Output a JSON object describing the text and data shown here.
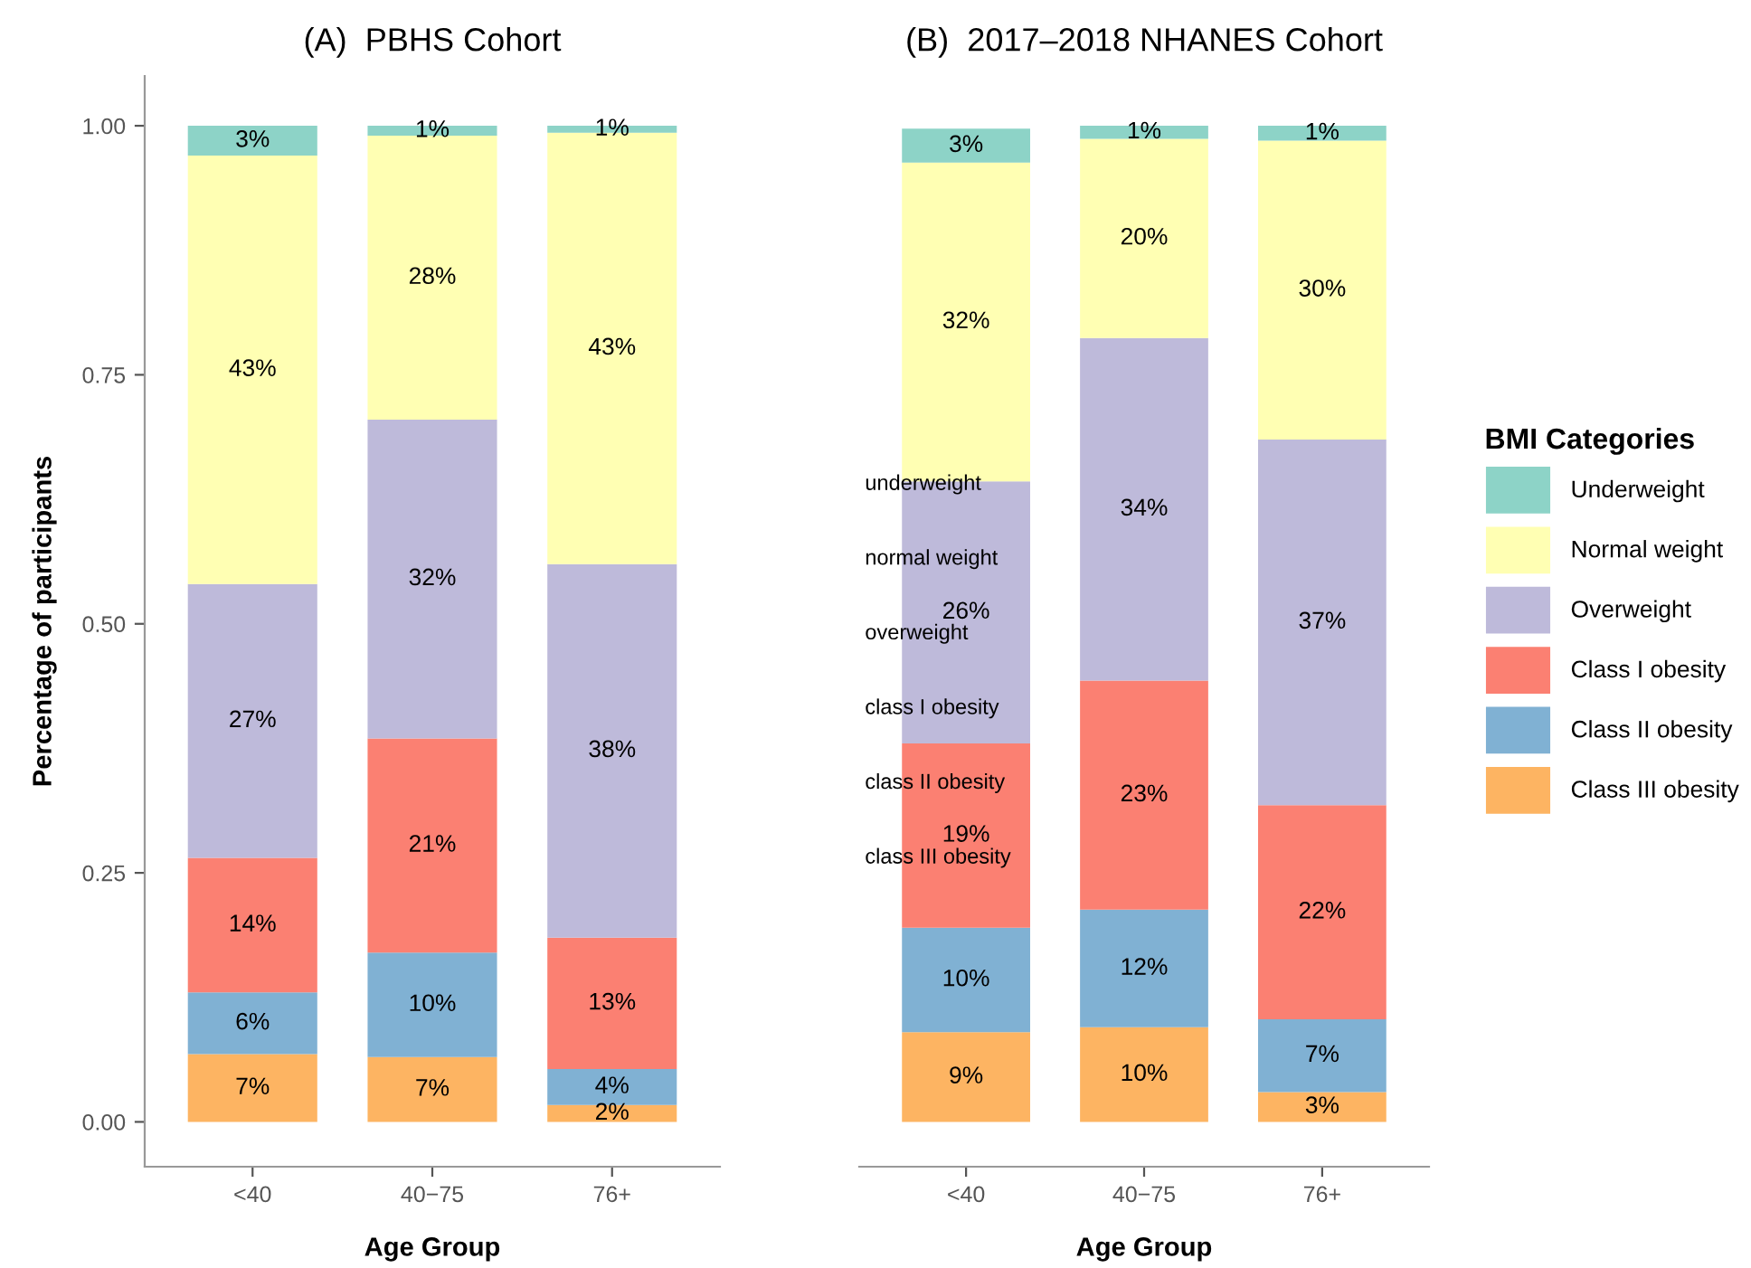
{
  "chart_data": [
    {
      "type": "bar",
      "stacked": true,
      "title": "(A)  PBHS Cohort",
      "xlabel": "Age Group",
      "ylabel": "Percentage of participants",
      "categories": [
        "<40",
        "40−75",
        "76+"
      ],
      "ylim": [
        -0.045,
        1.05
      ],
      "yticks": [
        {
          "value": 0,
          "label": "0.00"
        },
        {
          "value": 0.25,
          "label": "0.25"
        },
        {
          "value": 0.5,
          "label": "0.50"
        },
        {
          "value": 0.75,
          "label": "0.75"
        },
        {
          "value": 1,
          "label": "1.00"
        }
      ],
      "grid": false,
      "series": [
        {
          "color": "#fdb462",
          "values": [
            0.068,
            0.065,
            0.017
          ],
          "value_labels": [
            "7%",
            "7%",
            "2%"
          ]
        },
        {
          "color": "#80b1d3",
          "values": [
            0.062,
            0.105,
            0.036
          ],
          "value_labels": [
            "6%",
            "10%",
            "4%"
          ]
        },
        {
          "color": "#fb8072",
          "values": [
            0.135,
            0.215,
            0.132
          ],
          "value_labels": [
            "14%",
            "21%",
            "13%"
          ]
        },
        {
          "color": "#bebada",
          "values": [
            0.275,
            0.32,
            0.375
          ],
          "value_labels": [
            "27%",
            "32%",
            "38%"
          ]
        },
        {
          "color": "#ffffb3",
          "values": [
            0.43,
            0.285,
            0.433
          ],
          "value_labels": [
            "43%",
            "28%",
            "43%"
          ]
        },
        {
          "color": "#8dd3c7",
          "values": [
            0.03,
            0.01,
            0.007
          ],
          "value_labels": [
            "3%",
            "1%",
            "1%"
          ]
        }
      ]
    },
    {
      "type": "bar",
      "stacked": true,
      "title": "(B)  2017–2018 NHANES Cohort",
      "xlabel": "Age Group",
      "legend_title": "BMI Categories",
      "categories": [
        "<40",
        "40−75",
        "76+"
      ],
      "tick_labels": "x",
      "grid": false,
      "legend": "right",
      "annotations": [
        "underweight",
        "normal weight",
        "overweight",
        "class I obesity",
        "class II obesity",
        "class III obesity"
      ],
      "series": [
        {
          "name": "Class III obesity",
          "color": "#fdb462",
          "values": [
            0.09,
            0.095,
            0.03
          ],
          "value_labels": [
            "9%",
            "10%",
            "3%"
          ]
        },
        {
          "name": "Class II obesity",
          "color": "#80b1d3",
          "values": [
            0.105,
            0.118,
            0.073
          ],
          "value_labels": [
            "10%",
            "12%",
            "7%"
          ]
        },
        {
          "name": "Class I obesity",
          "color": "#fb8072",
          "values": [
            0.185,
            0.23,
            0.215
          ],
          "value_labels": [
            "19%",
            "23%",
            "22%"
          ]
        },
        {
          "name": "Overweight",
          "color": "#bebada",
          "values": [
            0.263,
            0.344,
            0.367
          ],
          "value_labels": [
            "26%",
            "34%",
            "37%"
          ]
        },
        {
          "name": "Normal weight",
          "color": "#ffffb3",
          "values": [
            0.32,
            0.2,
            0.3
          ],
          "value_labels": [
            "32%",
            "20%",
            "30%"
          ]
        },
        {
          "name": "Underweight",
          "color": "#8dd3c7",
          "values": [
            0.034,
            0.013,
            0.015
          ],
          "value_labels": [
            "3%",
            "1%",
            "1%"
          ]
        }
      ]
    }
  ]
}
